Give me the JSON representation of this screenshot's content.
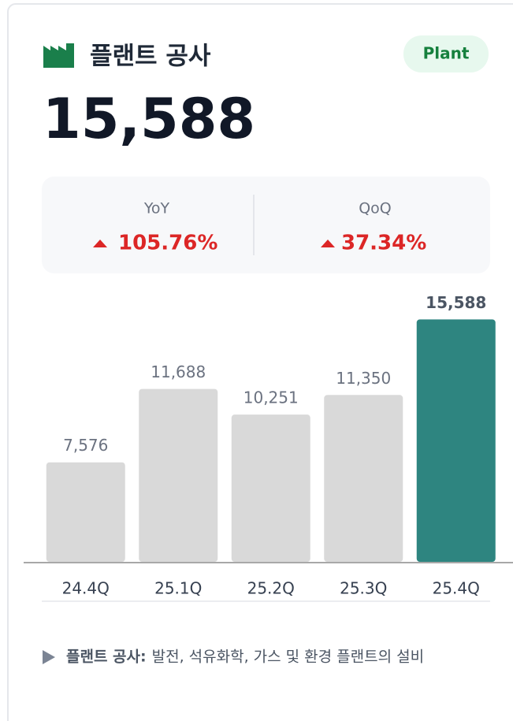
{
  "header": {
    "title": "플랜트 공사",
    "badge": "Plant"
  },
  "kpi": {
    "value": "15,588"
  },
  "stats": [
    {
      "label": "YoY",
      "value": "105.76%"
    },
    {
      "label": "QoQ",
      "value": "37.34%"
    }
  ],
  "chart_data": {
    "type": "bar",
    "categories": [
      "24.4Q",
      "25.1Q",
      "25.2Q",
      "25.3Q",
      "25.4Q"
    ],
    "values": [
      7576,
      11688,
      10251,
      11350,
      15588
    ],
    "value_labels": [
      "7,576",
      "11,688",
      "10,251",
      "11,350",
      "15,588"
    ],
    "colors": [
      "#d9d9d9",
      "#d9d9d9",
      "#d9d9d9",
      "#d9d9d9",
      "#2e8580"
    ],
    "ylim": [
      2000,
      16000
    ]
  },
  "footnote": {
    "label": "플랜트 공사:",
    "text": "발전, 석유화학, 가스 및 환경 플랜트의 설비"
  }
}
